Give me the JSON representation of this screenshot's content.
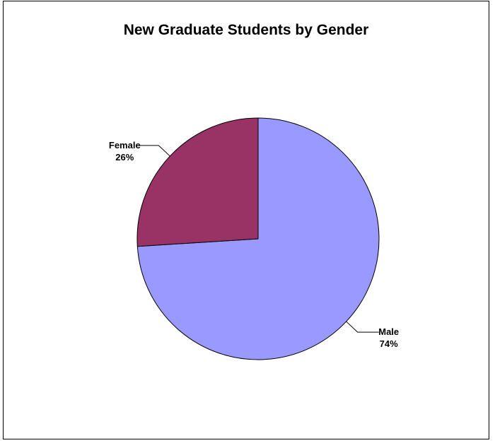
{
  "chart_data": {
    "type": "pie",
    "title": "New Graduate Students by Gender",
    "slices": [
      {
        "label": "Male",
        "value": 74,
        "percent_label": "74%",
        "color": "#9999FF"
      },
      {
        "label": "Female",
        "value": 26,
        "percent_label": "26%",
        "color": "#993366"
      }
    ],
    "start_angle_deg": 0,
    "direction": "clockwise",
    "legend": "none",
    "data_labels": "outside with leader lines"
  }
}
